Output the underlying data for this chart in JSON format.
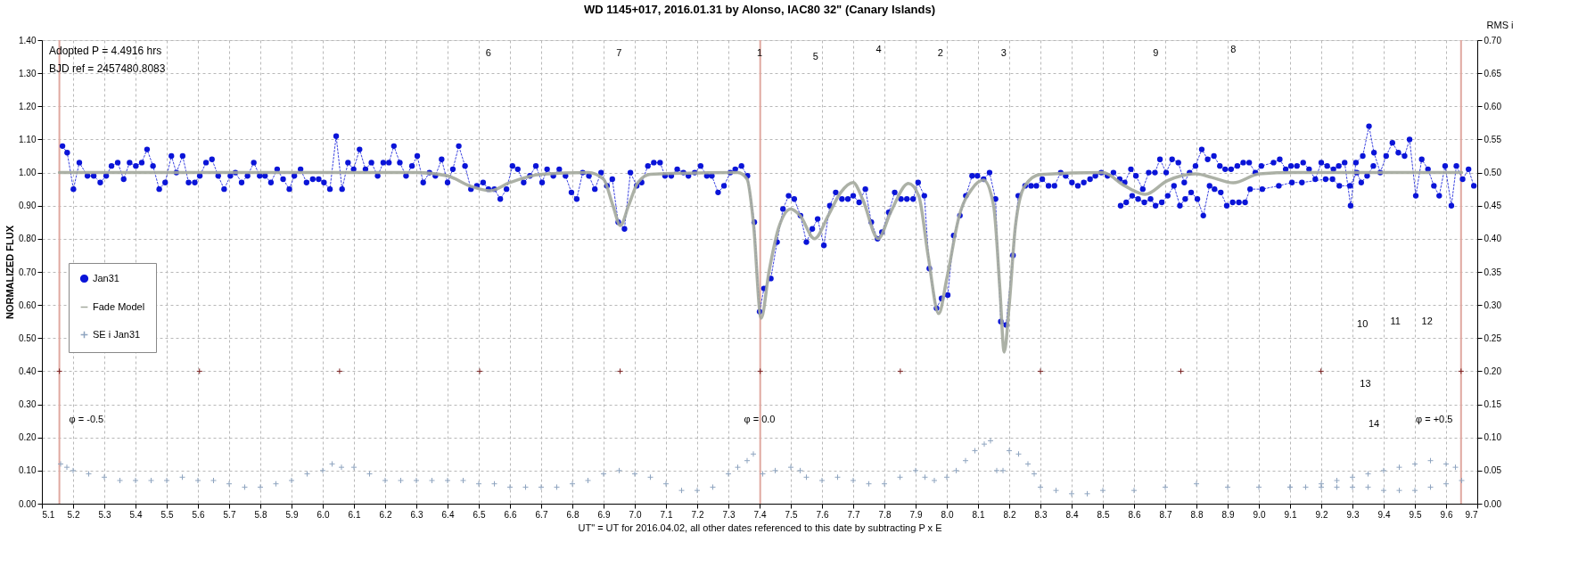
{
  "chart_data": {
    "type": "line",
    "title": "WD 1145+017,  2016.01.31  by Alonso, IAC80  32\" (Canary Islands)",
    "xlabel": "UT\" = UT for 2016.04.02, all other dates referenced to this date by subtracting P x E",
    "ylabel": "NORMALIZED  FLUX",
    "y2label": "RMS i",
    "xlim": [
      5.1,
      9.7
    ],
    "xticks": [
      5.1,
      5.2,
      5.3,
      5.4,
      5.5,
      5.6,
      5.7,
      5.8,
      5.9,
      {
        "value": 6,
        "label": "6.0"
      },
      6.1,
      6.2,
      6.3,
      6.4,
      6.5,
      6.6,
      6.7,
      6.8,
      6.9,
      {
        "value": 7,
        "label": "7.0"
      },
      7.1,
      7.2,
      7.3,
      7.4,
      7.5,
      7.6,
      7.7,
      7.8,
      7.9,
      {
        "value": 8,
        "label": "8.0"
      },
      8.1,
      8.2,
      8.3,
      8.4,
      8.5,
      8.6,
      8.7,
      8.8,
      8.9,
      {
        "value": 9,
        "label": "9.0"
      },
      9.1,
      9.2,
      9.3,
      9.4,
      9.5,
      9.6,
      9.7
    ],
    "ylim": [
      0,
      1.4
    ],
    "yticks": [
      {
        "value": 0,
        "label": "0.00"
      },
      {
        "value": 0.1,
        "label": "0.10"
      },
      {
        "value": 0.2,
        "label": "0.20"
      },
      {
        "value": 0.3,
        "label": "0.30"
      },
      {
        "value": 0.4,
        "label": "0.40"
      },
      {
        "value": 0.5,
        "label": "0.50"
      },
      {
        "value": 0.6,
        "label": "0.60"
      },
      {
        "value": 0.7,
        "label": "0.70"
      },
      {
        "value": 0.8,
        "label": "0.80"
      },
      {
        "value": 0.9,
        "label": "0.90"
      },
      {
        "value": 1,
        "label": "1.00"
      },
      {
        "value": 1.1,
        "label": "1.10"
      },
      {
        "value": 1.2,
        "label": "1.20"
      },
      {
        "value": 1.3,
        "label": "1.30"
      },
      {
        "value": 1.4,
        "label": "1.40"
      }
    ],
    "y2lim": [
      0,
      0.7
    ],
    "y2ticks": [
      {
        "value": 0,
        "label": "0.00"
      },
      {
        "value": 0.05,
        "label": "0.05"
      },
      {
        "value": 0.1,
        "label": "0.10"
      },
      {
        "value": 0.15,
        "label": "0.15"
      },
      {
        "value": 0.2,
        "label": "0.20"
      },
      {
        "value": 0.25,
        "label": "0.25"
      },
      {
        "value": 0.3,
        "label": "0.30"
      },
      {
        "value": 0.35,
        "label": "0.35"
      },
      {
        "value": 0.4,
        "label": "0.40"
      },
      {
        "value": 0.45,
        "label": "0.45"
      },
      {
        "value": 0.5,
        "label": "0.50"
      },
      {
        "value": 0.55,
        "label": "0.55"
      },
      {
        "value": 0.6,
        "label": "0.60"
      },
      {
        "value": 0.65,
        "label": "0.65"
      },
      {
        "value": 0.7,
        "label": "0.70"
      }
    ],
    "grid": true,
    "legend": "left",
    "series": [
      {
        "name": "Jan31",
        "type": "line",
        "color": "#0a14d8",
        "marker": "circle",
        "line_style": "dotted",
        "x": [
          5.166,
          5.181,
          5.201,
          5.22,
          5.246,
          5.266,
          5.287,
          5.306,
          5.323,
          5.343,
          5.362,
          5.381,
          5.401,
          5.42,
          5.437,
          5.456,
          5.476,
          5.495,
          5.515,
          5.531,
          5.551,
          5.57,
          5.59,
          5.606,
          5.626,
          5.645,
          5.665,
          5.684,
          5.704,
          5.72,
          5.74,
          5.759,
          5.779,
          5.798,
          5.815,
          5.834,
          5.854,
          5.873,
          5.893,
          5.909,
          5.929,
          5.948,
          5.968,
          5.987,
          6.004,
          6.023,
          6.043,
          6.062,
          6.081,
          6.099,
          6.118,
          6.137,
          6.156,
          6.176,
          6.194,
          6.212,
          6.228,
          6.247,
          6.267,
          6.286,
          6.303,
          6.322,
          6.342,
          6.361,
          6.381,
          6.4,
          6.417,
          6.436,
          6.456,
          6.475,
          6.494,
          6.514,
          6.531,
          6.55,
          6.569,
          6.589,
          6.608,
          6.625,
          6.644,
          6.664,
          6.683,
          6.703,
          6.719,
          6.739,
          6.758,
          6.778,
          6.797,
          6.814,
          6.833,
          6.853,
          6.872,
          6.892,
          6.911,
          6.928,
          6.947,
          6.967,
          6.986,
          7.006,
          7.022,
          7.042,
          7.061,
          7.081,
          7.097,
          7.117,
          7.136,
          7.156,
          7.172,
          7.192,
          7.211,
          7.231,
          7.247,
          7.267,
          7.286,
          7.306,
          7.322,
          7.342,
          7.361,
          7.383,
          7.4,
          7.414,
          7.436,
          7.456,
          7.475,
          7.493,
          7.511,
          7.531,
          7.55,
          7.569,
          7.586,
          7.606,
          7.625,
          7.644,
          7.664,
          7.683,
          7.7,
          7.719,
          7.739,
          7.758,
          7.778,
          7.792,
          7.814,
          7.833,
          7.853,
          7.872,
          7.892,
          7.908,
          7.928,
          7.944,
          7.967,
          7.983,
          8.003,
          8.022,
          8.042,
          8.061,
          8.081,
          8.098,
          8.118,
          8.137,
          8.156,
          8.173,
          8.19,
          8.212,
          8.229,
          8.251,
          8.27,
          8.287,
          8.306,
          8.326,
          8.345,
          8.365,
          8.381,
          8.401,
          8.42,
          8.439,
          8.459,
          8.476,
          8.495,
          8.515,
          8.534,
          8.554,
          8.57,
          8.59,
          8.606,
          8.628,
          8.647,
          8.667,
          8.683,
          8.703,
          8.722,
          8.742,
          8.761,
          8.778,
          8.797,
          8.817,
          8.836,
          8.856,
          8.875,
          8.892,
          8.911,
          8.931,
          8.95,
          8.969,
          8.989,
          9.008,
          9.047,
          9.067,
          9.086,
          9.103,
          9.122,
          9.142,
          9.161,
          9.181,
          9.2,
          9.219,
          9.239,
          9.256,
          9.275,
          9.294,
          9.311,
          9.333,
          9.353,
          9.369,
          9.389,
          9.408,
          9.428,
          9.447,
          9.467,
          9.483,
          9.503,
          9.522,
          9.542,
          9.561,
          9.578,
          9.597,
          9.617,
          9.633,
          9.653,
          9.672,
          9.689
        ],
        "values": [
          1.08,
          1.06,
          0.95,
          1.03,
          0.99,
          0.99,
          0.97,
          0.99,
          1.02,
          1.03,
          0.98,
          1.03,
          1.02,
          1.03,
          1.07,
          1.02,
          0.95,
          0.97,
          1.05,
          1.0,
          1.05,
          0.97,
          0.97,
          0.99,
          1.03,
          1.04,
          0.99,
          0.95,
          0.99,
          1.0,
          0.97,
          0.99,
          1.03,
          0.99,
          0.99,
          0.97,
          1.01,
          0.98,
          0.95,
          0.99,
          1.01,
          0.97,
          0.98,
          0.98,
          0.97,
          0.95,
          1.11,
          0.95,
          1.03,
          1.01,
          1.07,
          1.01,
          1.03,
          0.99,
          1.03,
          1.03,
          1.08,
          1.03,
          0.99,
          1.02,
          1.05,
          0.97,
          1.0,
          0.99,
          1.04,
          0.97,
          1.01,
          1.08,
          1.02,
          0.95,
          0.96,
          0.97,
          0.95,
          0.95,
          0.92,
          0.95,
          1.02,
          1.01,
          0.97,
          0.99,
          1.02,
          0.97,
          1.01,
          0.99,
          1.01,
          0.99,
          0.94,
          0.92,
          1.0,
          0.99,
          0.95,
          1.0,
          0.96,
          0.98,
          0.85,
          0.83,
          1.0,
          0.96,
          0.97,
          1.02,
          1.03,
          1.03,
          0.99,
          0.99,
          1.01,
          1.0,
          0.99,
          1.0,
          1.02,
          0.99,
          0.99,
          0.94,
          0.96,
          1.0,
          1.01,
          1.02,
          0.99,
          0.85,
          0.58,
          0.65,
          0.68,
          0.79,
          0.89,
          0.93,
          0.92,
          0.87,
          0.79,
          0.83,
          0.86,
          0.78,
          0.9,
          0.94,
          0.92,
          0.92,
          0.93,
          0.91,
          0.95,
          0.85,
          0.8,
          0.82,
          0.88,
          0.94,
          0.92,
          0.92,
          0.92,
          0.97,
          0.93,
          0.71,
          0.59,
          0.62,
          0.63,
          0.81,
          0.87,
          0.93,
          0.99,
          0.99,
          0.98,
          1.0,
          0.92,
          0.55,
          0.54,
          0.75,
          0.93,
          0.96,
          0.96,
          0.96,
          0.98,
          0.96,
          0.96,
          1.0,
          0.99,
          0.97,
          0.96,
          0.97,
          0.98,
          0.99,
          1.0,
          0.99,
          1.0,
          0.98,
          0.97,
          1.01,
          0.99,
          0.95,
          1.0,
          1.0,
          1.04,
          1.0,
          1.04,
          1.03,
          0.97,
          1.0,
          1.02,
          1.07,
          1.04,
          1.05,
          1.02,
          1.01,
          1.01,
          1.02,
          1.03,
          1.03,
          1.0,
          1.02,
          1.03,
          1.04,
          1.01,
          1.02,
          1.02,
          1.03,
          1.01,
          0.98,
          1.03,
          1.02,
          1.01,
          1.02,
          1.03,
          0.9,
          1.03,
          1.05,
          1.14,
          1.06,
          1.0,
          1.05,
          1.09,
          1.06,
          1.05,
          1.1,
          0.93,
          1.04,
          1.01,
          0.96,
          0.93,
          1.02,
          0.9,
          1.02,
          0.98,
          1.01,
          0.96
        ]
      },
      {
        "type": "line",
        "color": "#0a14d8",
        "marker": "circle",
        "line_style": "dotted",
        "x": [
          8.557,
          8.575,
          8.594,
          8.613,
          8.633,
          8.653,
          8.669,
          8.689,
          8.708,
          8.728,
          8.747,
          8.764,
          8.783,
          8.803,
          8.822,
          8.842,
          8.858,
          8.878,
          8.897,
          8.916,
          8.936,
          8.956,
          8.972,
          9.011,
          9.064,
          9.106,
          9.138,
          9.214,
          9.236,
          9.258,
          9.292,
          9.314,
          9.328,
          9.347,
          9.367
        ],
        "values": [
          0.9,
          0.91,
          0.93,
          0.92,
          0.91,
          0.92,
          0.9,
          0.91,
          0.93,
          0.96,
          0.9,
          0.92,
          0.94,
          0.92,
          0.87,
          0.96,
          0.95,
          0.94,
          0.9,
          0.91,
          0.91,
          0.91,
          0.95,
          0.95,
          0.96,
          0.97,
          0.97,
          0.98,
          0.98,
          0.96,
          0.96,
          1.0,
          0.97,
          0.99,
          1.02
        ]
      },
      {
        "name": "Fade Model",
        "type": "line",
        "color": "#a3a89c",
        "marker": "none",
        "line_style": "solid",
        "x": [
          5.156,
          6.3,
          6.4,
          6.47,
          6.537,
          6.6,
          6.7,
          6.85,
          6.9,
          6.93,
          6.954,
          6.98,
          7.01,
          7.05,
          7.33,
          7.36,
          7.38,
          7.405,
          7.43,
          7.46,
          7.5,
          7.53,
          7.576,
          7.62,
          7.66,
          7.7,
          7.73,
          7.78,
          7.82,
          7.877,
          7.91,
          7.94,
          7.974,
          8.0,
          8.04,
          8.08,
          8.118,
          8.15,
          8.17,
          8.184,
          8.2,
          8.22,
          8.25,
          8.3,
          8.5,
          8.57,
          8.636,
          8.706,
          8.798,
          8.85,
          8.918,
          9.002,
          9.113,
          9.65
        ],
        "values": [
          1.0,
          1.0,
          0.99,
          0.96,
          0.945,
          0.97,
          0.995,
          1.0,
          0.98,
          0.9,
          0.84,
          0.9,
          0.97,
          0.995,
          1.0,
          0.98,
          0.85,
          0.56,
          0.7,
          0.83,
          0.89,
          0.87,
          0.8,
          0.87,
          0.94,
          0.97,
          0.92,
          0.8,
          0.88,
          0.967,
          0.93,
          0.75,
          0.574,
          0.68,
          0.87,
          0.95,
          0.977,
          0.9,
          0.65,
          0.458,
          0.6,
          0.84,
          0.96,
          0.994,
          1.0,
          0.96,
          0.934,
          0.975,
          0.996,
          0.985,
          0.969,
          0.996,
          1.0,
          1.0
        ]
      },
      {
        "name": "SE i Jan31",
        "type": "scatter",
        "color": "#8fa5c0",
        "marker": "cross",
        "axis": "y2",
        "x": [
          5.16,
          5.18,
          5.2,
          5.25,
          5.3,
          5.35,
          5.4,
          5.45,
          5.5,
          5.55,
          5.6,
          5.65,
          5.7,
          5.75,
          5.8,
          5.85,
          5.9,
          5.95,
          6.0,
          6.03,
          6.06,
          6.1,
          6.15,
          6.2,
          6.25,
          6.3,
          6.35,
          6.4,
          6.45,
          6.5,
          6.55,
          6.6,
          6.65,
          6.7,
          6.75,
          6.8,
          6.85,
          6.9,
          6.95,
          7.0,
          7.05,
          7.1,
          7.15,
          7.2,
          7.25,
          7.3,
          7.33,
          7.36,
          7.38,
          7.41,
          7.45,
          7.5,
          7.53,
          7.55,
          7.6,
          7.65,
          7.7,
          7.75,
          7.8,
          7.85,
          7.9,
          7.93,
          7.96,
          8.0,
          8.03,
          8.06,
          8.09,
          8.12,
          8.14,
          8.16,
          8.18,
          8.2,
          8.23,
          8.26,
          8.28,
          8.3,
          8.35,
          8.4,
          8.45,
          8.5,
          8.6,
          8.7,
          8.8,
          8.9,
          9.0,
          9.1,
          9.2,
          9.25,
          9.3,
          9.35,
          9.4,
          9.45,
          9.5,
          9.55,
          9.6,
          9.63
        ],
        "values": [
          0.06,
          0.055,
          0.05,
          0.045,
          0.04,
          0.035,
          0.035,
          0.035,
          0.035,
          0.04,
          0.035,
          0.035,
          0.03,
          0.025,
          0.025,
          0.03,
          0.035,
          0.045,
          0.05,
          0.06,
          0.055,
          0.055,
          0.045,
          0.035,
          0.035,
          0.035,
          0.035,
          0.035,
          0.035,
          0.03,
          0.03,
          0.025,
          0.025,
          0.025,
          0.025,
          0.03,
          0.035,
          0.045,
          0.05,
          0.045,
          0.04,
          0.03,
          0.02,
          0.02,
          0.025,
          0.045,
          0.055,
          0.065,
          0.075,
          0.045,
          0.05,
          0.055,
          0.05,
          0.04,
          0.035,
          0.04,
          0.035,
          0.03,
          0.03,
          0.04,
          0.05,
          0.04,
          0.035,
          0.04,
          0.05,
          0.065,
          0.08,
          0.09,
          0.095,
          0.05,
          0.05,
          0.08,
          0.075,
          0.06,
          0.045,
          0.025,
          0.02,
          0.015,
          0.015,
          0.02,
          0.02,
          0.025,
          0.03,
          0.025,
          0.025,
          0.025,
          0.03,
          0.035,
          0.04,
          0.045,
          0.05,
          0.055,
          0.06,
          0.065,
          0.06,
          0.055
        ]
      },
      {
        "type": "scatter",
        "color": "#8fa5c0",
        "marker": "cross",
        "axis": "y2",
        "x": [
          9.1,
          9.15,
          9.2,
          9.25,
          9.3,
          9.35,
          9.4,
          9.45,
          9.5,
          9.55,
          9.6,
          9.65
        ],
        "values": [
          0.025,
          0.025,
          0.025,
          0.025,
          0.025,
          0.025,
          0.02,
          0.02,
          0.02,
          0.025,
          0.03,
          0.035
        ]
      },
      {
        "type": "scatter",
        "color": "#7a2020",
        "marker": "cross",
        "x": [
          5.156,
          5.605,
          6.054,
          6.503,
          6.953,
          7.402,
          7.851,
          8.3,
          8.75,
          9.199,
          9.648
        ],
        "values": [
          0.4,
          0.4,
          0.4,
          0.4,
          0.4,
          0.4,
          0.4,
          0.4,
          0.4,
          0.4,
          0.4
        ]
      }
    ],
    "ref_lines": [
      {
        "axis": "x",
        "value": 5.156,
        "color": "#e0a8a0"
      },
      {
        "axis": "x",
        "value": 7.402,
        "color": "#e0a8a0"
      },
      {
        "axis": "x",
        "value": 9.648,
        "color": "#e0a8a0"
      }
    ],
    "annotations": [
      "Adopted P = 4.4916 hrs",
      "BJD ref = 2457480.8083",
      "φ = -0.5",
      "φ = 0.0",
      "φ = +0.5",
      "6",
      "7",
      "1",
      "5",
      "4",
      "2",
      "3",
      "9",
      "8",
      "10",
      "11",
      "12",
      "13",
      "14"
    ]
  }
}
